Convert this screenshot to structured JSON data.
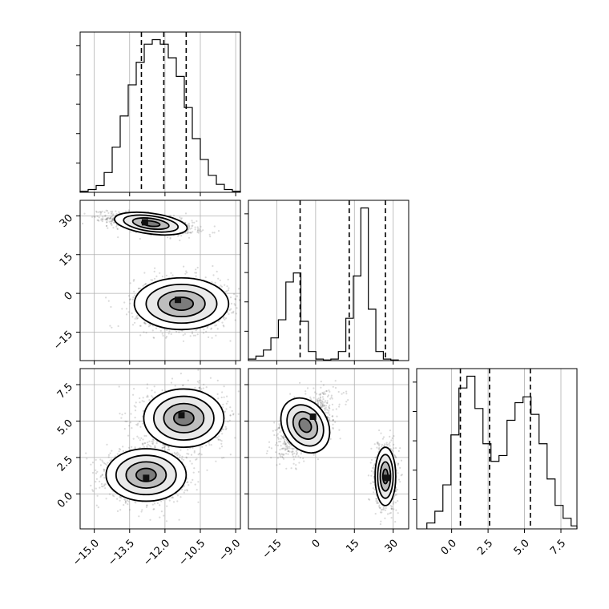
{
  "chart_data": {
    "type": "corner",
    "colors": {
      "ink": "#000000",
      "grid": "#b0b0b0",
      "scatter": "#555555"
    },
    "grid": true,
    "variables": [
      {
        "id": "p0",
        "range": [
          -15.6,
          -8.8
        ],
        "ticks": [
          -15.0,
          -13.5,
          -12.0,
          -10.5,
          -9.0
        ],
        "tick_labels": [
          "−15.0",
          "−13.5",
          "−12.0",
          "−10.5",
          "−9.0"
        ],
        "quantiles": [
          -13.0,
          -12.05,
          -11.1
        ],
        "hist": {
          "edges": [
            -15.6,
            -15.26,
            -14.92,
            -14.58,
            -14.24,
            -13.9,
            -13.56,
            -13.22,
            -12.88,
            -12.54,
            -12.2,
            -11.86,
            -11.52,
            -11.18,
            -10.84,
            -10.5,
            -10.16,
            -9.82,
            -9.48,
            -9.14,
            -8.8
          ],
          "counts": [
            2,
            5,
            12,
            35,
            80,
            135,
            190,
            230,
            262,
            270,
            262,
            238,
            205,
            150,
            95,
            58,
            30,
            14,
            5,
            2
          ]
        }
      },
      {
        "id": "p1",
        "range": [
          -26,
          36
        ],
        "ticks": [
          -15,
          0,
          15,
          30
        ],
        "tick_labels": [
          "−15",
          "0",
          "15",
          "30"
        ],
        "quantiles": [
          -6,
          13,
          27
        ],
        "hist": {
          "edges": [
            -26,
            -23.1,
            -20.2,
            -17.3,
            -14.4,
            -11.5,
            -8.6,
            -5.7,
            -2.8,
            0.1,
            3.0,
            5.9,
            8.8,
            11.7,
            14.6,
            17.5,
            20.4,
            23.3,
            26.2,
            29.1,
            32
          ],
          "counts": [
            5,
            15,
            35,
            75,
            135,
            260,
            290,
            130,
            30,
            5,
            2,
            5,
            30,
            140,
            280,
            505,
            170,
            30,
            5,
            2
          ]
        }
      },
      {
        "id": "p2",
        "range": [
          -2.4,
          8.6
        ],
        "ticks": [
          0.0,
          2.5,
          5.0,
          7.5
        ],
        "tick_labels": [
          "0.0",
          "2.5",
          "5.0",
          "7.5"
        ],
        "quantiles": [
          0.6,
          2.6,
          5.4
        ],
        "hist": {
          "edges": [
            -1.7,
            -1.15,
            -0.6,
            -0.05,
            0.5,
            1.05,
            1.6,
            2.15,
            2.7,
            3.25,
            3.8,
            4.35,
            4.9,
            5.45,
            6.0,
            6.55,
            7.1,
            7.65,
            8.2,
            8.6
          ],
          "counts": [
            10,
            30,
            75,
            160,
            240,
            260,
            205,
            145,
            115,
            125,
            185,
            215,
            225,
            195,
            145,
            85,
            40,
            18,
            5
          ]
        }
      }
    ],
    "pairs": [
      {
        "x": "p0",
        "y": "p1",
        "clusters": [
          {
            "center": [
              -12.6,
              27
            ],
            "sigma": [
              0.9,
              2.0
            ],
            "corr": -0.55,
            "weight": 0.5
          },
          {
            "center": [
              -11.3,
              -4
            ],
            "sigma": [
              1.0,
              5.0
            ],
            "corr": 0.0,
            "weight": 0.5
          }
        ],
        "peaks": [
          [
            -12.85,
            27.5
          ],
          [
            -11.45,
            -2.5
          ]
        ]
      },
      {
        "x": "p0",
        "y": "p2",
        "clusters": [
          {
            "center": [
              -12.8,
              1.3
            ],
            "sigma": [
              0.85,
              0.9
            ],
            "corr": 0.0,
            "weight": 0.5
          },
          {
            "center": [
              -11.2,
              5.2
            ],
            "sigma": [
              0.85,
              1.0
            ],
            "corr": 0.0,
            "weight": 0.5
          }
        ],
        "peaks": [
          [
            -12.8,
            1.1
          ],
          [
            -11.3,
            5.4
          ]
        ]
      },
      {
        "x": "p1",
        "y": "p2",
        "clusters": [
          {
            "center": [
              -4,
              4.7
            ],
            "sigma": [
              5.0,
              1.0
            ],
            "corr": 0.55,
            "weight": 0.5
          },
          {
            "center": [
              27,
              1.2
            ],
            "sigma": [
              2.0,
              1.0
            ],
            "corr": 0.0,
            "weight": 0.5
          }
        ],
        "peaks": [
          [
            -1,
            5.3
          ],
          [
            27.5,
            1.1
          ]
        ]
      }
    ],
    "contour_levels_sigma": [
      0.5,
      1.0,
      1.5,
      2.0
    ]
  }
}
